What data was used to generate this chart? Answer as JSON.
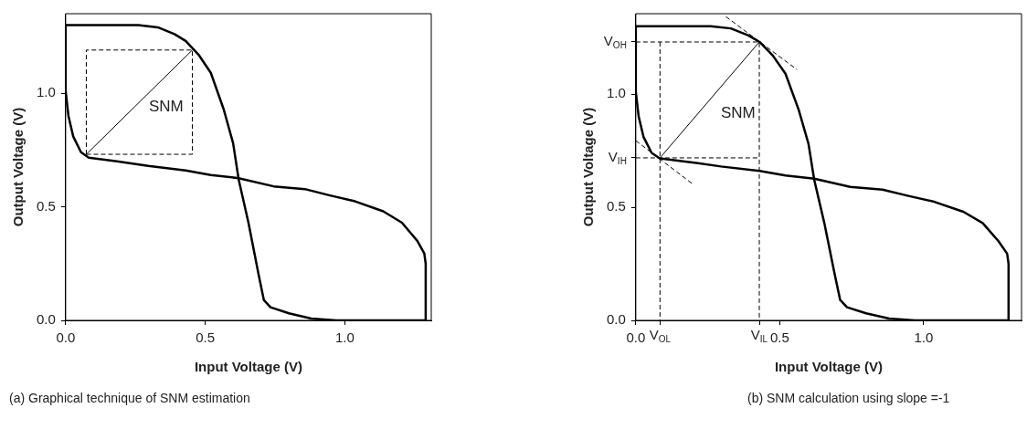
{
  "chart_data": [
    {
      "type": "line",
      "xlabel": "Input Voltage (V)",
      "ylabel": "Output Voltage (V)",
      "marker": "none",
      "grid": false,
      "legend": false,
      "xlim": [
        0,
        1.31
      ],
      "ylim": [
        0,
        1.35
      ],
      "xticks": [
        {
          "value": 0,
          "label": "0.0"
        },
        {
          "value": 0.5,
          "label": "0.5"
        },
        {
          "value": 1,
          "label": "1.0"
        }
      ],
      "yticks": [
        {
          "value": 0,
          "label": "0.0"
        },
        {
          "value": 0.5,
          "label": "0.5"
        },
        {
          "value": 1,
          "label": "1.0"
        }
      ],
      "series": [
        {
          "type": "line",
          "color": "#000000",
          "line_style": "solid",
          "x": [
            0,
            0.26,
            0.33,
            0.39,
            0.43,
            0.476,
            0.52,
            0.566,
            0.6,
            0.62,
            0.655,
            0.69,
            0.71,
            0.734,
            0.8,
            0.88,
            0.97,
            1.29
          ],
          "values": [
            1.3,
            1.3,
            1.29,
            1.26,
            1.23,
            1.17,
            1.09,
            0.93,
            0.78,
            0.62,
            0.43,
            0.21,
            0.09,
            0.058,
            0.031,
            0.008,
            0,
            0
          ]
        },
        {
          "type": "line",
          "color": "#000000",
          "line_style": "solid",
          "x": [
            0,
            0,
            0.01,
            0.027,
            0.055,
            0.083,
            0.184,
            0.296,
            0.43,
            0.52,
            0.62,
            0.745,
            0.857,
            0.947,
            1.037,
            1.138,
            1.205,
            1.26,
            1.285,
            1.29,
            1.29
          ],
          "values": [
            1.3,
            1.01,
            0.9,
            0.81,
            0.74,
            0.716,
            0.7,
            0.68,
            0.66,
            0.64,
            0.626,
            0.59,
            0.578,
            0.55,
            0.524,
            0.48,
            0.43,
            0.35,
            0.295,
            0.25,
            0
          ]
        },
        {
          "type": "line",
          "color": "#000000",
          "line_style": "solid",
          "x": [
            0.074,
            0.454
          ],
          "values": [
            0.731,
            1.19
          ]
        },
        {
          "type": "line",
          "color": "#000000",
          "line_style": "dashed",
          "x": [
            0.074,
            0.454,
            0.454
          ],
          "values": [
            0.731,
            0.731,
            1.19
          ]
        },
        {
          "type": "line",
          "color": "#000000",
          "line_style": "dashed",
          "x": [
            0.074,
            0.074,
            0.454
          ],
          "values": [
            0.731,
            1.19,
            1.19
          ]
        }
      ],
      "annotations": [
        "SNM",
        "(a) Graphical technique of SNM estimation"
      ]
    },
    {
      "type": "line",
      "xlabel": "Input Voltage (V)",
      "ylabel": "Output Voltage (V)",
      "marker": "none",
      "grid": false,
      "legend": false,
      "xlim": [
        0,
        1.34
      ],
      "ylim": [
        0,
        1.355
      ],
      "xticks": [
        {
          "value": 0,
          "label": "0.0"
        },
        {
          "value": 0.084,
          "label": "V$_{OL}$"
        },
        {
          "value": 0.429,
          "label": "V$_{IL}$"
        },
        {
          "value": 0.5,
          "label": "0.5"
        },
        {
          "value": 1,
          "label": "1.0"
        }
      ],
      "yticks": [
        {
          "value": 0,
          "label": "0.0"
        },
        {
          "value": 0.5,
          "label": "0.5"
        },
        {
          "value": 0.718,
          "label": "V$_{IH}$"
        },
        {
          "value": 1,
          "label": "1.0"
        },
        {
          "value": 1.23,
          "label": "V$_{OH}$"
        }
      ],
      "series": [
        {
          "type": "line",
          "color": "#000000",
          "line_style": "solid",
          "x": [
            0,
            0.26,
            0.33,
            0.39,
            0.43,
            0.476,
            0.52,
            0.566,
            0.6,
            0.62,
            0.655,
            0.69,
            0.71,
            0.734,
            0.8,
            0.88,
            0.97,
            1.295
          ],
          "values": [
            1.3,
            1.3,
            1.29,
            1.26,
            1.23,
            1.17,
            1.09,
            0.93,
            0.78,
            0.62,
            0.43,
            0.21,
            0.09,
            0.058,
            0.031,
            0.008,
            0,
            0
          ]
        },
        {
          "type": "line",
          "color": "#000000",
          "line_style": "solid",
          "x": [
            0,
            0,
            0.01,
            0.027,
            0.055,
            0.083,
            0.184,
            0.296,
            0.43,
            0.52,
            0.62,
            0.745,
            0.857,
            0.947,
            1.037,
            1.138,
            1.205,
            1.26,
            1.29,
            1.295,
            1.295
          ],
          "values": [
            1.3,
            1.01,
            0.9,
            0.81,
            0.74,
            0.716,
            0.7,
            0.68,
            0.66,
            0.64,
            0.626,
            0.59,
            0.578,
            0.55,
            0.524,
            0.48,
            0.43,
            0.35,
            0.295,
            0.25,
            0
          ]
        },
        {
          "type": "line",
          "color": "#000000",
          "line_style": "solid",
          "x": [
            0.084,
            0.429
          ],
          "values": [
            0.718,
            1.23
          ]
        },
        {
          "type": "line",
          "color": "#000000",
          "line_style": "dashed",
          "x": [
            0,
            0.429,
            0.429
          ],
          "values": [
            1.23,
            1.23,
            0
          ]
        },
        {
          "type": "line",
          "color": "#000000",
          "line_style": "dashed",
          "x": [
            0,
            0.429
          ],
          "values": [
            0.718,
            0.718
          ]
        },
        {
          "type": "line",
          "color": "#000000",
          "line_style": "dashed",
          "x": [
            0.084,
            0.084
          ],
          "values": [
            1.23,
            0
          ]
        },
        {
          "type": "line",
          "color": "#000000",
          "line_style": "dashed",
          "x": [
            0.313,
            0.56
          ],
          "values": [
            1.342,
            1.108
          ]
        },
        {
          "type": "line",
          "color": "#000000",
          "line_style": "dashed",
          "x": [
            0,
            0.195
          ],
          "values": [
            0.794,
            0.605
          ]
        }
      ],
      "annotations": [
        "SNM",
        "(b) SNM calculation using slope =-1"
      ]
    }
  ]
}
